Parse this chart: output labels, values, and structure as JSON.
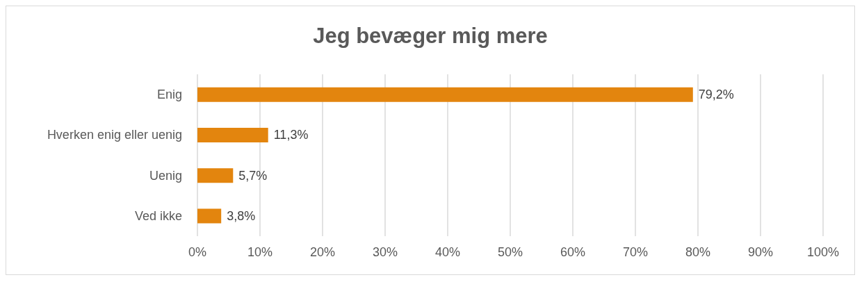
{
  "chart_data": {
    "type": "bar",
    "orientation": "horizontal",
    "title": "Jeg bevæger mig mere",
    "categories": [
      "Enig",
      "Hverken enig eller uenig",
      "Uenig",
      "Ved ikke"
    ],
    "values": [
      79.2,
      11.3,
      5.7,
      3.8
    ],
    "value_labels": [
      "79,2%",
      "11,3%",
      "5,7%",
      "3,8%"
    ],
    "color": "#e3850e",
    "xlim": [
      0,
      100
    ],
    "xticks": [
      {
        "value": 0,
        "label": "0%"
      },
      {
        "value": 10,
        "label": "10%"
      },
      {
        "value": 20,
        "label": "20%"
      },
      {
        "value": 30,
        "label": "30%"
      },
      {
        "value": 40,
        "label": "40%"
      },
      {
        "value": 50,
        "label": "50%"
      },
      {
        "value": 60,
        "label": "60%"
      },
      {
        "value": 70,
        "label": "70%"
      },
      {
        "value": 80,
        "label": "80%"
      },
      {
        "value": 90,
        "label": "90%"
      },
      {
        "value": 100,
        "label": "100%"
      }
    ],
    "grid": "x"
  }
}
